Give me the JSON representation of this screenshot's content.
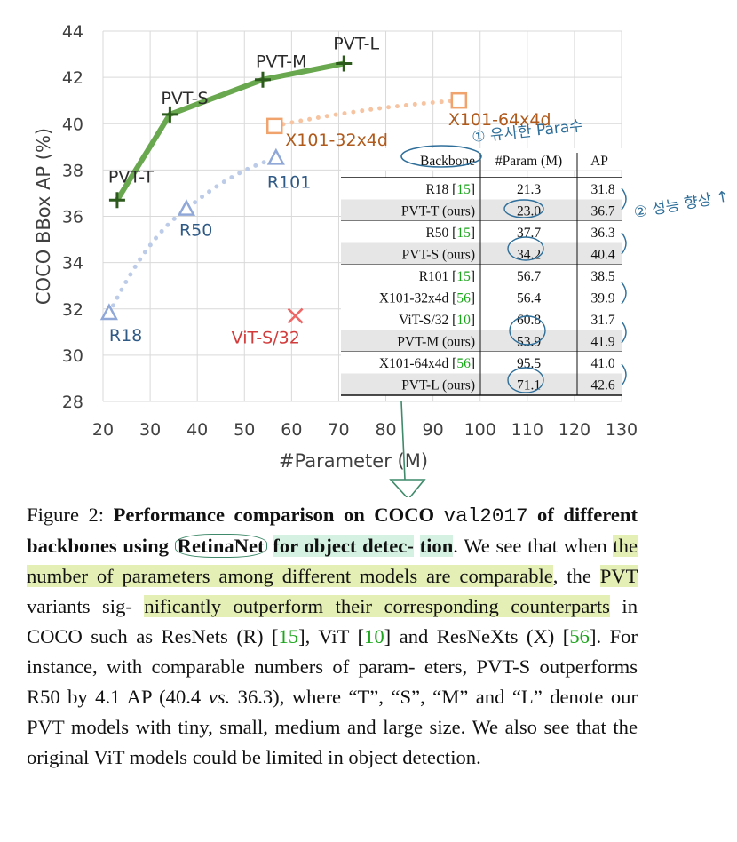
{
  "chart_data": {
    "type": "scatter",
    "xlabel": "#Parameter (M)",
    "ylabel": "COCO BBox AP (%)",
    "xlim": [
      20,
      130
    ],
    "ylim": [
      28,
      44
    ],
    "xticks": [
      "20",
      "30",
      "40",
      "50",
      "60",
      "70",
      "80",
      "90",
      "100",
      "110",
      "120",
      "130"
    ],
    "yticks": [
      "28",
      "30",
      "32",
      "34",
      "36",
      "38",
      "40",
      "42",
      "44"
    ],
    "grid": true,
    "series": [
      {
        "name": "PVT",
        "marker": "plus",
        "color": "#6aa84f",
        "points": [
          {
            "label": "PVT-T",
            "x": 23.0,
            "y": 36.7
          },
          {
            "label": "PVT-S",
            "x": 34.2,
            "y": 40.4
          },
          {
            "label": "PVT-M",
            "x": 53.9,
            "y": 41.9
          },
          {
            "label": "PVT-L",
            "x": 71.1,
            "y": 42.6
          }
        ]
      },
      {
        "name": "ResNet",
        "marker": "triangle",
        "color": "#a4b8e0",
        "points": [
          {
            "label": "R18",
            "x": 21.3,
            "y": 31.8
          },
          {
            "label": "R50",
            "x": 37.7,
            "y": 36.3
          },
          {
            "label": "R101",
            "x": 56.7,
            "y": 38.5
          }
        ]
      },
      {
        "name": "ResNeXt",
        "marker": "square",
        "color": "#f2b085",
        "points": [
          {
            "label": "X101-32x4d",
            "x": 56.4,
            "y": 39.9
          },
          {
            "label": "X101-64x4d",
            "x": 95.5,
            "y": 41.0
          }
        ]
      },
      {
        "name": "ViT",
        "marker": "x",
        "color": "#e06060",
        "points": [
          {
            "label": "ViT-S/32",
            "x": 60.8,
            "y": 31.7
          }
        ]
      }
    ],
    "table": {
      "headers": [
        "Backbone",
        "#Param (M)",
        "AP"
      ],
      "groups": [
        [
          {
            "name": "R18",
            "cite": "15",
            "param": "21.3",
            "ap": "31.8",
            "shade": false
          },
          {
            "name": "PVT-T (ours)",
            "cite": "",
            "param": "23.0",
            "ap": "36.7",
            "shade": true
          }
        ],
        [
          {
            "name": "R50",
            "cite": "15",
            "param": "37.7",
            "ap": "36.3",
            "shade": false
          },
          {
            "name": "PVT-S (ours)",
            "cite": "",
            "param": "34.2",
            "ap": "40.4",
            "shade": true
          }
        ],
        [
          {
            "name": "R101",
            "cite": "15",
            "param": "56.7",
            "ap": "38.5",
            "shade": false
          },
          {
            "name": "X101-32x4d",
            "cite": "56",
            "param": "56.4",
            "ap": "39.9",
            "shade": false
          },
          {
            "name": "ViT-S/32",
            "cite": "10",
            "param": "60.8",
            "ap": "31.7",
            "shade": false
          },
          {
            "name": "PVT-M (ours)",
            "cite": "",
            "param": "53.9",
            "ap": "41.9",
            "shade": true
          }
        ],
        [
          {
            "name": "X101-64x4d",
            "cite": "56",
            "param": "95.5",
            "ap": "41.0",
            "shade": false
          },
          {
            "name": "PVT-L (ours)",
            "cite": "",
            "param": "71.1",
            "ap": "42.6",
            "shade": true
          }
        ]
      ]
    }
  },
  "annotations": {
    "note1": "① 유사한 Para수",
    "note2": "② 성능 향상 ↑",
    "colors": {
      "ink": "#2f6f9a",
      "green_ink": "#3f8a6a"
    }
  },
  "caption": {
    "figure_label": "Figure 2:",
    "title_1": "Performance comparison on COCO",
    "title_mono": "val2017",
    "title_2": "of different backbones using",
    "title_retinanet": "RetinaNet",
    "title_3": "for object detec-",
    "title_4": "tion",
    "s1": ". We see that when",
    "hl1": "the number of parameters among different models are comparable",
    "s2": ", the",
    "hl2": "PVT",
    "s3": "variants sig-",
    "hl3": "nificantly outperform their corresponding counterparts",
    "s4": "in COCO such as ResNets (R) [",
    "c15": "15",
    "s5": "], ViT [",
    "c10": "10",
    "s6": "] and ResNeXts (X) [",
    "c56": "56",
    "s7": "]. For instance, with comparable numbers of param- eters, PVT-S outperforms R50 by 4.1 AP (40.4",
    "vs": "vs.",
    "s8": "36.3), where “T”, “S”, “M” and “L” denote our PVT models with tiny, small, medium and large size.  We also see that the original ViT models could be limited in object detection."
  }
}
